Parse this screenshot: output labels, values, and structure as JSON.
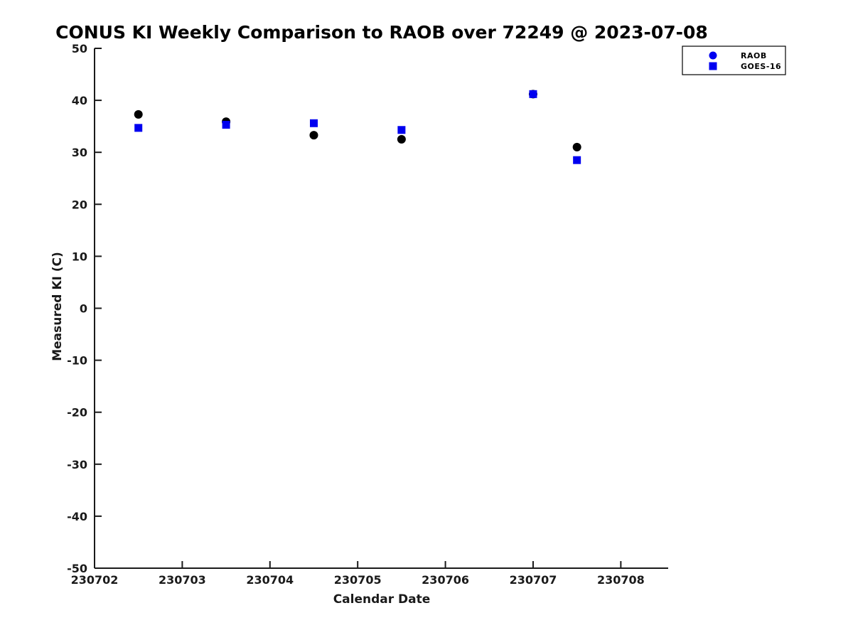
{
  "page": {
    "background_color": "#ffffff"
  },
  "chart_data": {
    "type": "scatter",
    "title": "CONUS KI Weekly Comparison to RAOB over 72249 @ 2023-07-08",
    "xlabel": "Calendar Date",
    "ylabel": "Measured KI (C)",
    "xlim": [
      230702,
      230708.54
    ],
    "ylim": [
      -50,
      50
    ],
    "x_ticks": [
      230702,
      230703,
      230704,
      230705,
      230706,
      230707,
      230708
    ],
    "y_ticks": [
      50,
      40,
      30,
      20,
      10,
      0,
      -10,
      -20,
      -30,
      -40,
      -50
    ],
    "grid": false,
    "tick_direction": "in",
    "legend_position": "top-right",
    "colors": {
      "axis": "#1a1a1a",
      "raob_marker": "#000000",
      "goes16_marker": "#0000f0",
      "legend_marker": "#0000f0"
    },
    "series": [
      {
        "name": "RAOB",
        "marker": "circle",
        "marker_color": "#000000",
        "legend_color": "#0000f0",
        "x": [
          230702.5,
          230703.5,
          230704.5,
          230705.5,
          230707.0,
          230707.5
        ],
        "y": [
          37.3,
          35.9,
          33.3,
          32.5,
          41.2,
          31.0
        ]
      },
      {
        "name": "GOES-16",
        "marker": "square",
        "marker_color": "#0000f0",
        "legend_color": "#0000f0",
        "x": [
          230702.5,
          230703.5,
          230704.5,
          230705.5,
          230707.0,
          230707.5
        ],
        "y": [
          34.7,
          35.3,
          35.6,
          34.3,
          41.2,
          28.5
        ]
      }
    ]
  }
}
